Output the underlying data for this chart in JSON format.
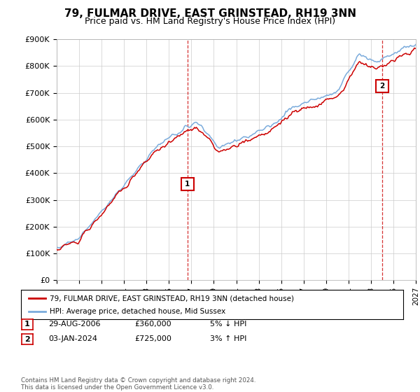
{
  "title": "79, FULMAR DRIVE, EAST GRINSTEAD, RH19 3NN",
  "subtitle": "Price paid vs. HM Land Registry's House Price Index (HPI)",
  "ylabel_ticks": [
    "£0",
    "£100K",
    "£200K",
    "£300K",
    "£400K",
    "£500K",
    "£600K",
    "£700K",
    "£800K",
    "£900K"
  ],
  "ylim": [
    0,
    900000
  ],
  "sale1_date_num": 2006.66,
  "sale1_price": 360000,
  "sale1_label": "1",
  "sale2_date_num": 2024.01,
  "sale2_price": 725000,
  "sale2_label": "2",
  "hpi_color": "#7aabdc",
  "price_color": "#cc0000",
  "vline_color": "#cc0000",
  "legend_entry1": "79, FULMAR DRIVE, EAST GRINSTEAD, RH19 3NN (detached house)",
  "legend_entry2": "HPI: Average price, detached house, Mid Sussex",
  "table_row1": [
    "1",
    "29-AUG-2006",
    "£360,000",
    "5% ↓ HPI"
  ],
  "table_row2": [
    "2",
    "03-JAN-2024",
    "£725,000",
    "3% ↑ HPI"
  ],
  "footnote": "Contains HM Land Registry data © Crown copyright and database right 2024.\nThis data is licensed under the Open Government Licence v3.0.",
  "xmin": 1995,
  "xmax": 2027,
  "background_color": "#ffffff",
  "grid_color": "#cccccc"
}
